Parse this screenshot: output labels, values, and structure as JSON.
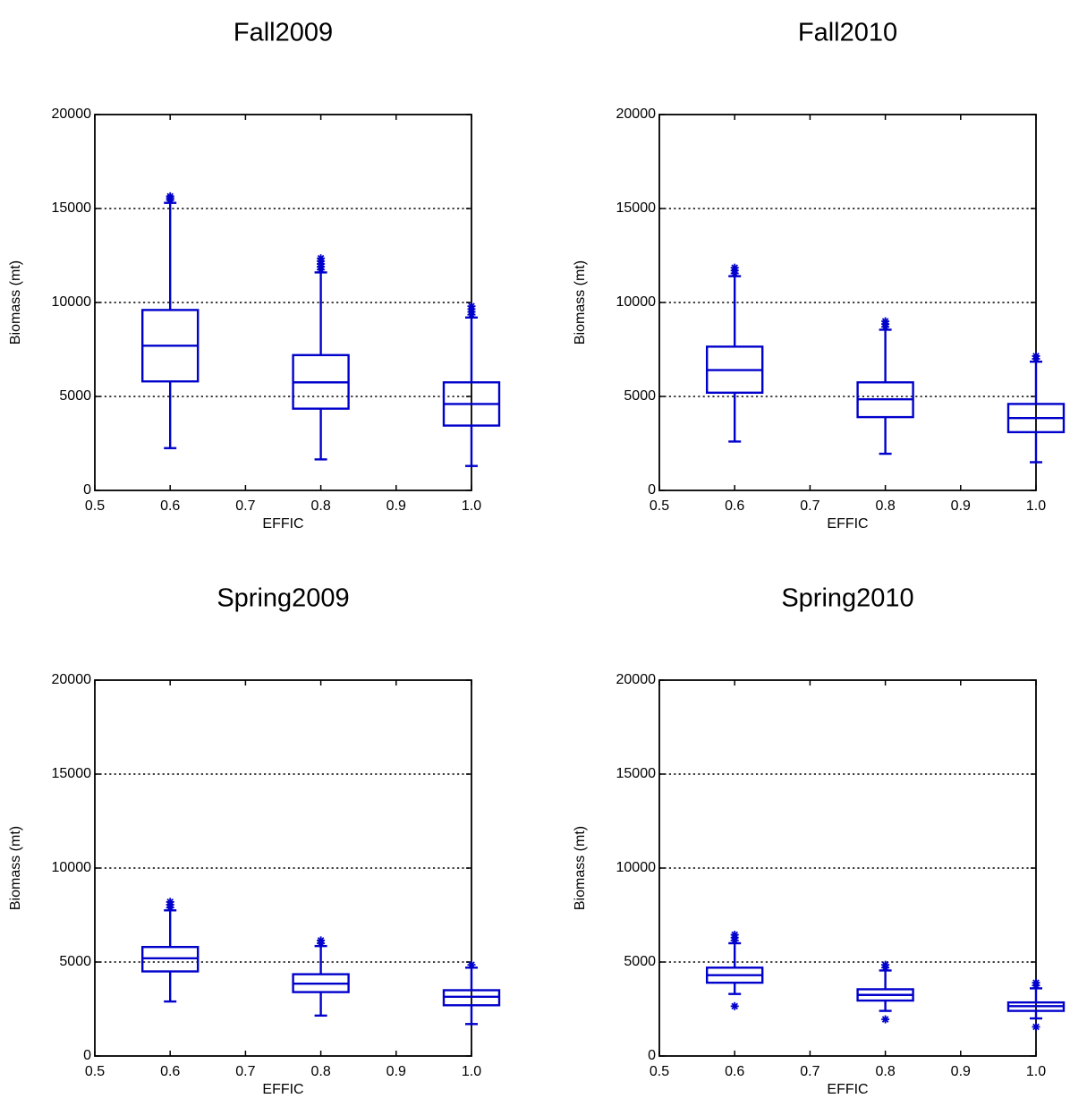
{
  "chart_data": [
    {
      "type": "box",
      "title": "Fall2009",
      "xlabel": "EFFIC",
      "ylabel": "Biomass (mt)",
      "xlim": [
        0.5,
        1.0
      ],
      "ylim": [
        0,
        20000
      ],
      "xticks": [
        "0.5",
        "0.6",
        "0.7",
        "0.8",
        "0.9",
        "1.0"
      ],
      "yticks": [
        "0",
        "5000",
        "10000",
        "15000",
        "20000"
      ],
      "grid": "horizontal dotted at 5000, 10000, 15000",
      "color": "#0000cc",
      "boxes": [
        {
          "x": 0.6,
          "whisker_low": 2250,
          "q1": 5800,
          "median": 7700,
          "q3": 9600,
          "whisker_high": 15300,
          "outliers": [
            15450,
            15550,
            15650
          ]
        },
        {
          "x": 0.8,
          "whisker_low": 1650,
          "q1": 4350,
          "median": 5750,
          "q3": 7200,
          "whisker_high": 11600,
          "outliers": [
            11750,
            11900,
            12050,
            12200,
            12350
          ]
        },
        {
          "x": 1.0,
          "whisker_low": 1300,
          "q1": 3450,
          "median": 4600,
          "q3": 5750,
          "whisker_high": 9200,
          "outliers": [
            9350,
            9500,
            9650,
            9800
          ]
        }
      ]
    },
    {
      "type": "box",
      "title": "Fall2010",
      "xlabel": "EFFIC",
      "ylabel": "Biomass (mt)",
      "xlim": [
        0.5,
        1.0
      ],
      "ylim": [
        0,
        20000
      ],
      "xticks": [
        "0.5",
        "0.6",
        "0.7",
        "0.8",
        "0.9",
        "1.0"
      ],
      "yticks": [
        "0",
        "5000",
        "10000",
        "15000",
        "20000"
      ],
      "grid": "horizontal dotted at 5000, 10000, 15000",
      "color": "#0000cc",
      "boxes": [
        {
          "x": 0.6,
          "whisker_low": 2600,
          "q1": 5200,
          "median": 6400,
          "q3": 7650,
          "whisker_high": 11400,
          "outliers": [
            11550,
            11700,
            11850
          ]
        },
        {
          "x": 0.8,
          "whisker_low": 1950,
          "q1": 3900,
          "median": 4850,
          "q3": 5750,
          "whisker_high": 8550,
          "outliers": [
            8700,
            8850,
            9000
          ]
        },
        {
          "x": 1.0,
          "whisker_low": 1500,
          "q1": 3100,
          "median": 3850,
          "q3": 4600,
          "whisker_high": 6850,
          "outliers": [
            7000,
            7150
          ]
        }
      ]
    },
    {
      "type": "box",
      "title": "Spring2009",
      "xlabel": "EFFIC",
      "ylabel": "Biomass (mt)",
      "xlim": [
        0.5,
        1.0
      ],
      "ylim": [
        0,
        20000
      ],
      "xticks": [
        "0.5",
        "0.6",
        "0.7",
        "0.8",
        "0.9",
        "1.0"
      ],
      "yticks": [
        "0",
        "5000",
        "10000",
        "15000",
        "20000"
      ],
      "grid": "horizontal dotted at 5000, 10000, 15000",
      "color": "#0000cc",
      "boxes": [
        {
          "x": 0.6,
          "whisker_low": 2900,
          "q1": 4500,
          "median": 5200,
          "q3": 5800,
          "whisker_high": 7750,
          "outliers": [
            7900,
            8050,
            8200
          ]
        },
        {
          "x": 0.8,
          "whisker_low": 2150,
          "q1": 3400,
          "median": 3850,
          "q3": 4350,
          "whisker_high": 5850,
          "outliers": [
            6000,
            6150
          ]
        },
        {
          "x": 1.0,
          "whisker_low": 1700,
          "q1": 2700,
          "median": 3150,
          "q3": 3500,
          "whisker_high": 4700,
          "outliers": [
            4850
          ]
        }
      ]
    },
    {
      "type": "box",
      "title": "Spring2010",
      "xlabel": "EFFIC",
      "ylabel": "Biomass (mt)",
      "xlim": [
        0.5,
        1.0
      ],
      "ylim": [
        0,
        20000
      ],
      "xticks": [
        "0.5",
        "0.6",
        "0.7",
        "0.8",
        "0.9",
        "1.0"
      ],
      "yticks": [
        "0",
        "5000",
        "10000",
        "15000",
        "20000"
      ],
      "grid": "horizontal dotted at 5000, 10000, 15000",
      "color": "#0000cc",
      "boxes": [
        {
          "x": 0.6,
          "whisker_low": 3300,
          "q1": 3900,
          "median": 4300,
          "q3": 4700,
          "whisker_high": 6000,
          "outliers": [
            2650,
            6150,
            6300,
            6450
          ]
        },
        {
          "x": 0.8,
          "whisker_low": 2400,
          "q1": 2950,
          "median": 3250,
          "q3": 3550,
          "whisker_high": 4550,
          "outliers": [
            1950,
            4700,
            4850
          ]
        },
        {
          "x": 1.0,
          "whisker_low": 2000,
          "q1": 2400,
          "median": 2650,
          "q3": 2850,
          "whisker_high": 3600,
          "outliers": [
            1550,
            3750,
            3900
          ]
        }
      ]
    }
  ]
}
